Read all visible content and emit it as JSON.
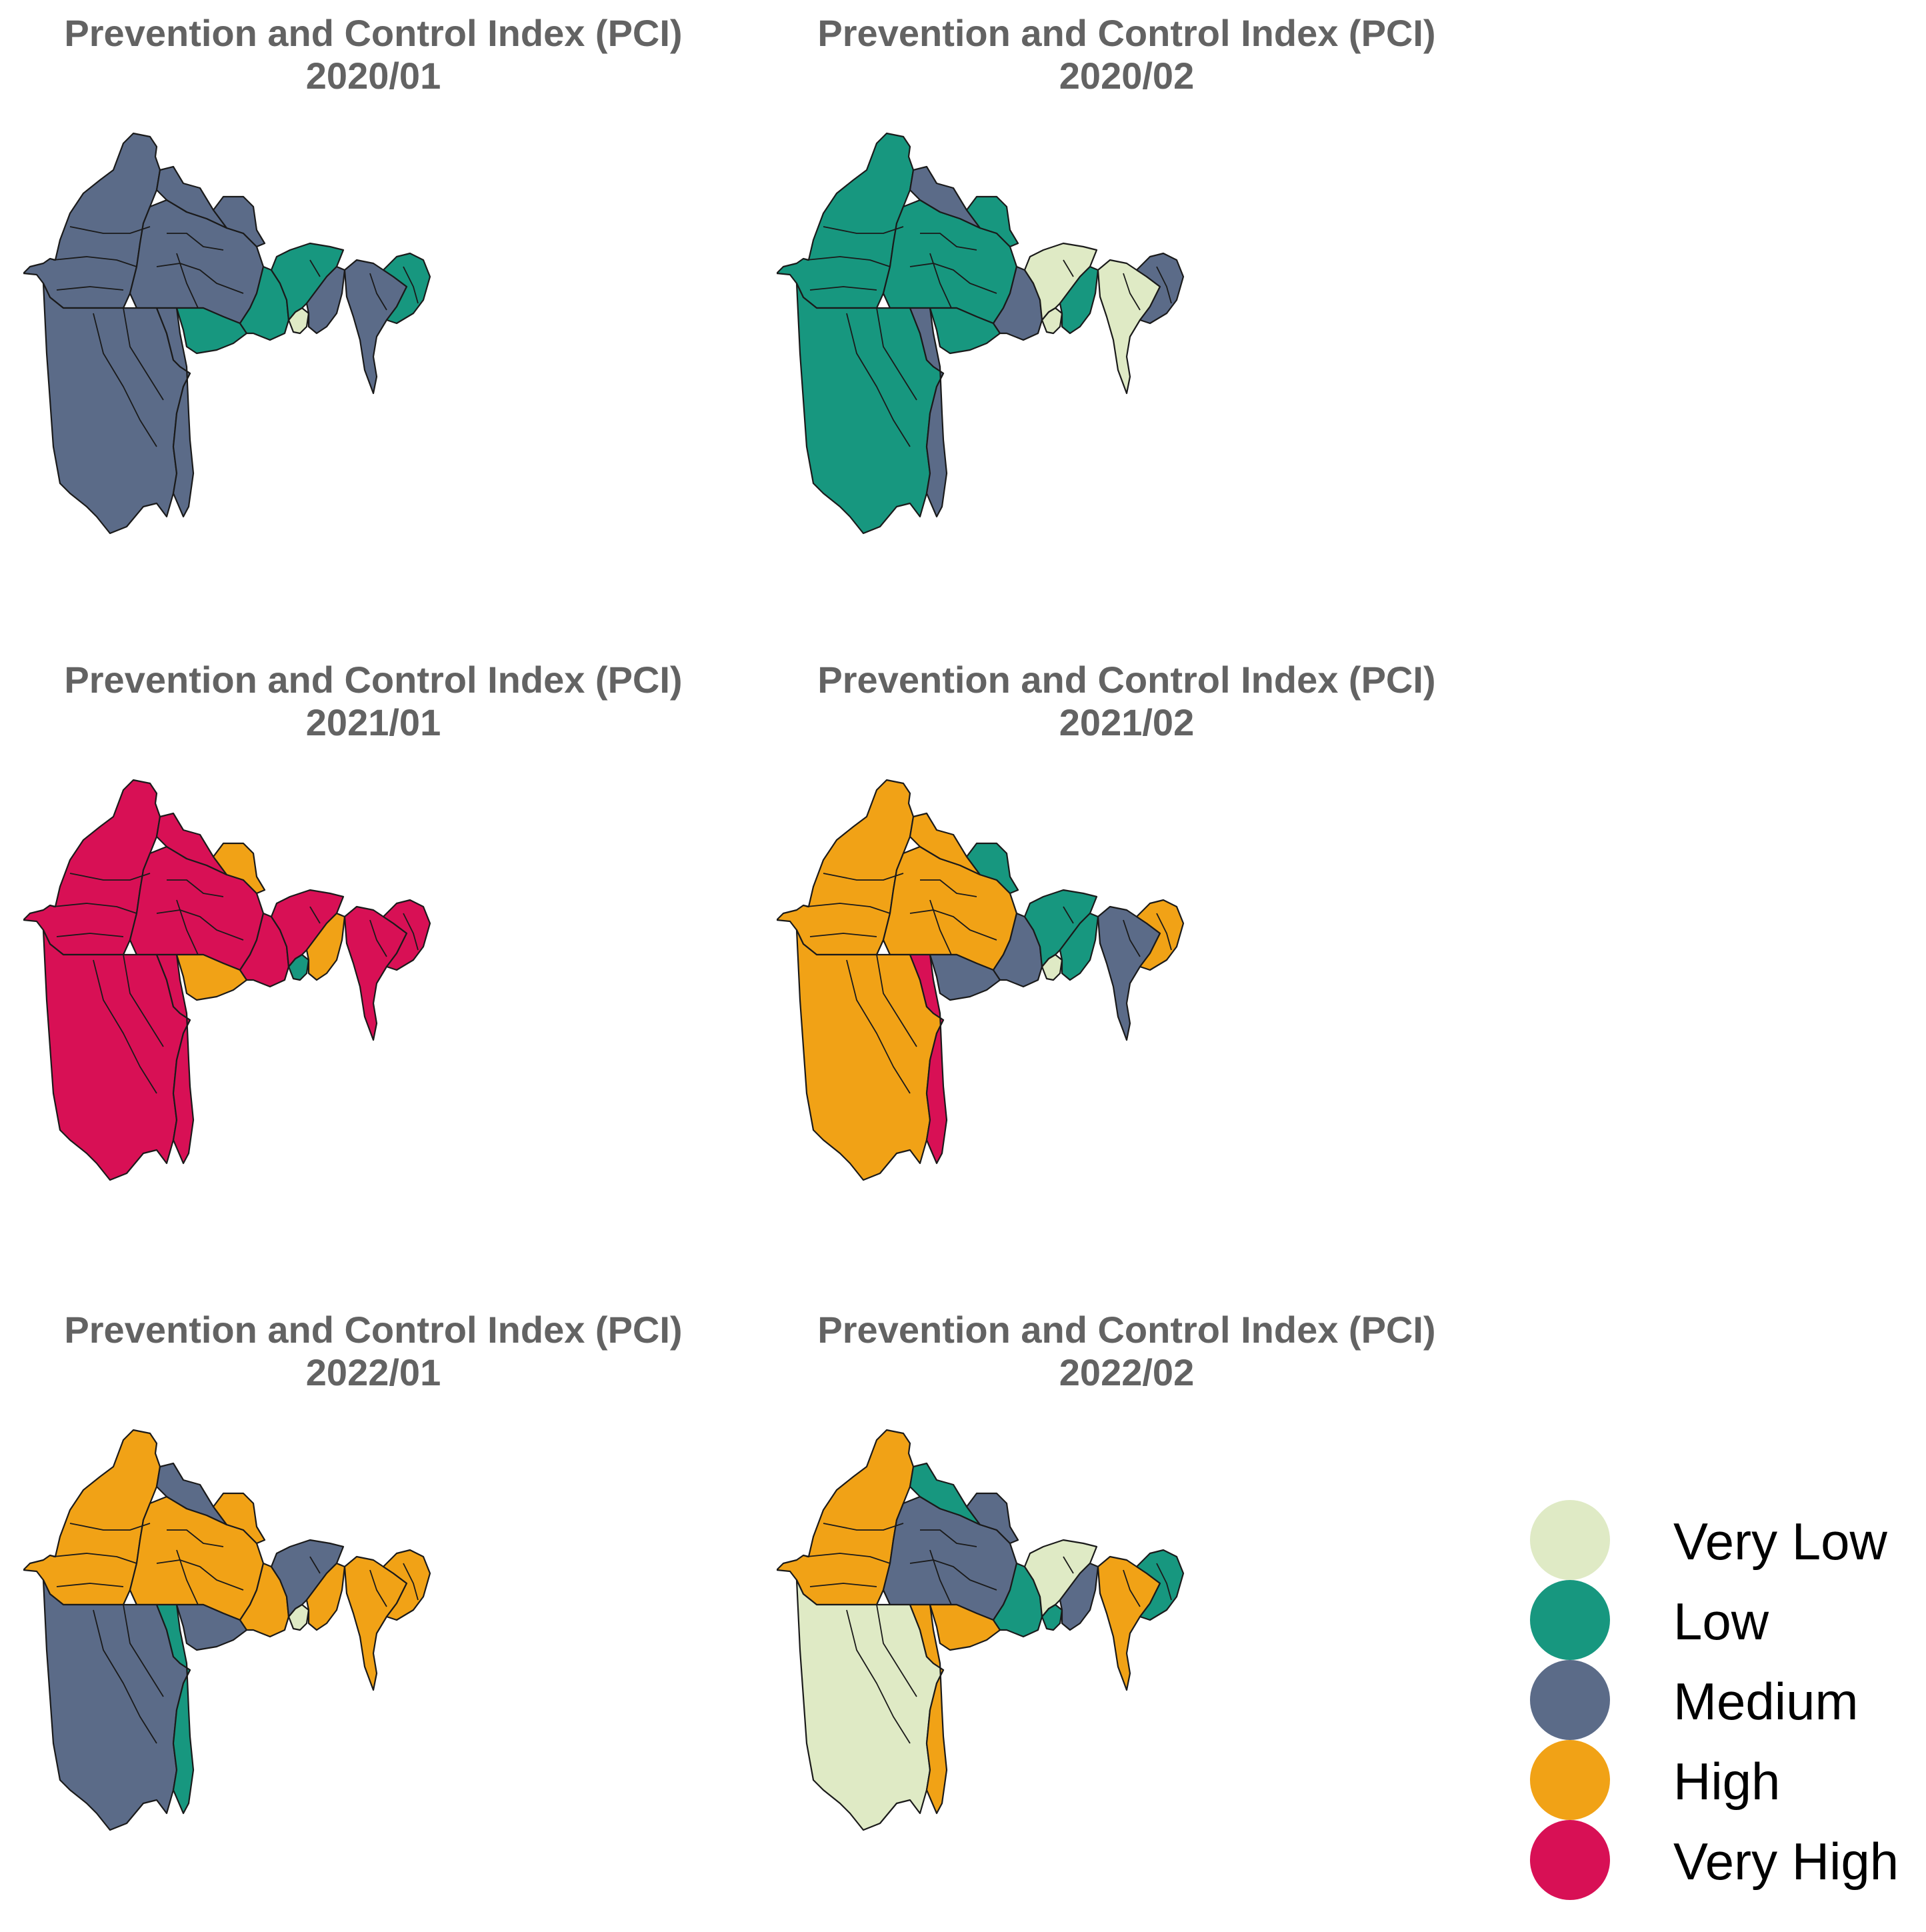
{
  "panels": [
    {
      "title": "Prevention and Control Index (PCI)",
      "period": "2020/01",
      "regions": {
        "west": "Medium",
        "center": "Medium",
        "south": "Medium",
        "strip": "Medium",
        "c1": "Low",
        "c2": "Low",
        "c3": "Very Low",
        "e1": "Low",
        "e2": "Medium",
        "east": "Medium",
        "se": "Low",
        "ne": "Medium",
        "n": "Medium"
      }
    },
    {
      "title": "Prevention and Control Index (PCI)",
      "period": "2020/02",
      "regions": {
        "west": "Low",
        "center": "Low",
        "south": "Low",
        "strip": "Medium",
        "c1": "Low",
        "c2": "Medium",
        "c3": "Very Low",
        "e1": "Very Low",
        "e2": "Low",
        "east": "Very Low",
        "se": "Medium",
        "ne": "Low",
        "n": "Medium"
      }
    },
    {
      "title": "Prevention and Control Index (PCI)",
      "period": "2021/01",
      "regions": {
        "west": "Very High",
        "center": "Very High",
        "south": "Very High",
        "strip": "Very High",
        "c1": "High",
        "c2": "Very High",
        "c3": "Low",
        "e1": "Very High",
        "e2": "High",
        "east": "Very High",
        "se": "Very High",
        "ne": "High",
        "n": "Very High"
      }
    },
    {
      "title": "Prevention and Control Index (PCI)",
      "period": "2021/02",
      "regions": {
        "west": "High",
        "center": "High",
        "south": "High",
        "strip": "Very High",
        "c1": "Medium",
        "c2": "Medium",
        "c3": "Very Low",
        "e1": "Low",
        "e2": "Low",
        "east": "Medium",
        "se": "High",
        "ne": "Low",
        "n": "High"
      }
    },
    {
      "title": "Prevention and Control Index (PCI)",
      "period": "2022/01",
      "regions": {
        "west": "High",
        "center": "High",
        "south": "Medium",
        "strip": "Low",
        "c1": "Medium",
        "c2": "High",
        "c3": "Very Low",
        "e1": "Medium",
        "e2": "High",
        "east": "High",
        "se": "High",
        "ne": "High",
        "n": "Medium"
      }
    },
    {
      "title": "Prevention and Control Index (PCI)",
      "period": "2022/02",
      "regions": {
        "west": "High",
        "center": "Medium",
        "south": "Very Low",
        "strip": "High",
        "c1": "High",
        "c2": "Low",
        "c3": "Low",
        "e1": "Very Low",
        "e2": "Medium",
        "east": "High",
        "se": "Low",
        "ne": "Medium",
        "n": "Low"
      }
    }
  ],
  "legend": [
    {
      "label": "Very Low",
      "color": "#dfeac5"
    },
    {
      "label": "Low",
      "color": "#17977f"
    },
    {
      "label": "Medium",
      "color": "#5b6b88"
    },
    {
      "label": "High",
      "color": "#f1a216"
    },
    {
      "label": "Very High",
      "color": "#d81055"
    }
  ]
}
